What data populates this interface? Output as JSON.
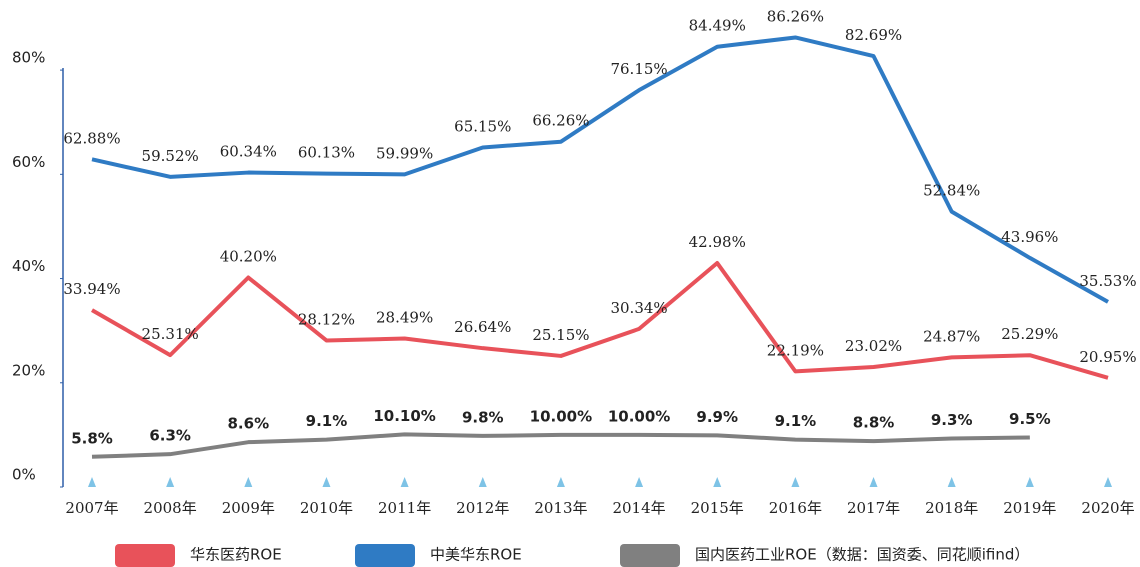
{
  "chart_data": {
    "type": "line",
    "categories": [
      "2007年",
      "2008年",
      "2009年",
      "2010年",
      "2011年",
      "2012年",
      "2013年",
      "2014年",
      "2015年",
      "2016年",
      "2017年",
      "2018年",
      "2019年",
      "2020年"
    ],
    "series": [
      {
        "name": "华东医药ROE",
        "color": "#e8525a",
        "values": [
          33.94,
          25.31,
          40.2,
          28.12,
          28.49,
          26.64,
          25.15,
          30.34,
          42.98,
          22.19,
          23.02,
          24.87,
          25.29,
          20.95
        ],
        "value_labels": [
          "33.94%",
          "25.31%",
          "40.20%",
          "28.12%",
          "28.49%",
          "26.64%",
          "25.15%",
          "30.34%",
          "42.98%",
          "22.19%",
          "23.02%",
          "24.87%",
          "25.29%",
          "20.95%"
        ]
      },
      {
        "name": "中美华东ROE",
        "color": "#2f7bc4",
        "values": [
          62.88,
          59.52,
          60.34,
          60.13,
          59.99,
          65.15,
          66.26,
          76.15,
          84.49,
          86.26,
          82.69,
          52.84,
          43.96,
          35.53
        ],
        "value_labels": [
          "62.88%",
          "59.52%",
          "60.34%",
          "60.13%",
          "59.99%",
          "65.15%",
          "66.26%",
          "76.15%",
          "84.49%",
          "86.26%",
          "82.69%",
          "52.84%",
          "43.96%",
          "35.53%"
        ]
      },
      {
        "name": "国内医药工业ROE（数据：国资委、同花顺ifind）",
        "color": "#808080",
        "values": [
          5.8,
          6.3,
          8.6,
          9.1,
          10.1,
          9.8,
          10.0,
          10.0,
          9.9,
          9.1,
          8.8,
          9.3,
          9.5,
          null
        ],
        "value_labels": [
          "5.8%",
          "6.3%",
          "8.6%",
          "9.1%",
          "10.10%",
          "9.8%",
          "10.00%",
          "10.00%",
          "9.9%",
          "9.1%",
          "8.8%",
          "9.3%",
          "9.5%",
          null
        ]
      }
    ],
    "ylim": [
      0,
      90
    ],
    "yticks": [
      {
        "value": 0,
        "label": "0%"
      },
      {
        "value": 20,
        "label": "20%"
      },
      {
        "value": 40,
        "label": "40%"
      },
      {
        "value": 60,
        "label": "60%"
      },
      {
        "value": 80,
        "label": "80%"
      }
    ],
    "legend": "bottom"
  }
}
